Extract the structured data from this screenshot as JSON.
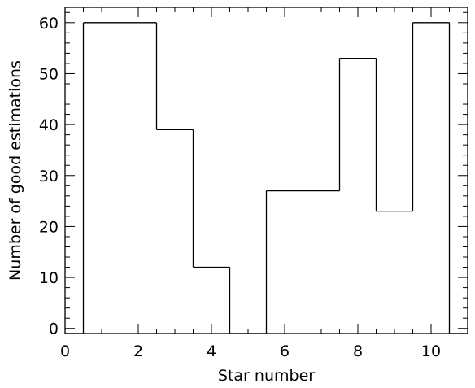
{
  "chart_data": {
    "type": "bar",
    "style": "step-histogram",
    "xlabel": "Star number",
    "ylabel": "Number of good estimations",
    "xlim": [
      0,
      11
    ],
    "ylim": [
      -1,
      63
    ],
    "x_ticks": [
      0,
      2,
      4,
      6,
      8,
      10
    ],
    "x_tick_labels": [
      "0",
      "2",
      "4",
      "6",
      "8",
      "10"
    ],
    "x_minor_step": 0.5,
    "y_ticks": [
      0,
      10,
      20,
      30,
      40,
      50,
      60
    ],
    "y_tick_labels": [
      "0",
      "10",
      "20",
      "30",
      "40",
      "50",
      "60"
    ],
    "y_minor_step": 2,
    "grid": false,
    "categories": [
      1,
      2,
      3,
      4,
      5,
      6,
      7,
      8,
      9,
      10
    ],
    "values": [
      60,
      60,
      39,
      12,
      0,
      27,
      27,
      53,
      23,
      60
    ],
    "line_color": "#000000"
  }
}
